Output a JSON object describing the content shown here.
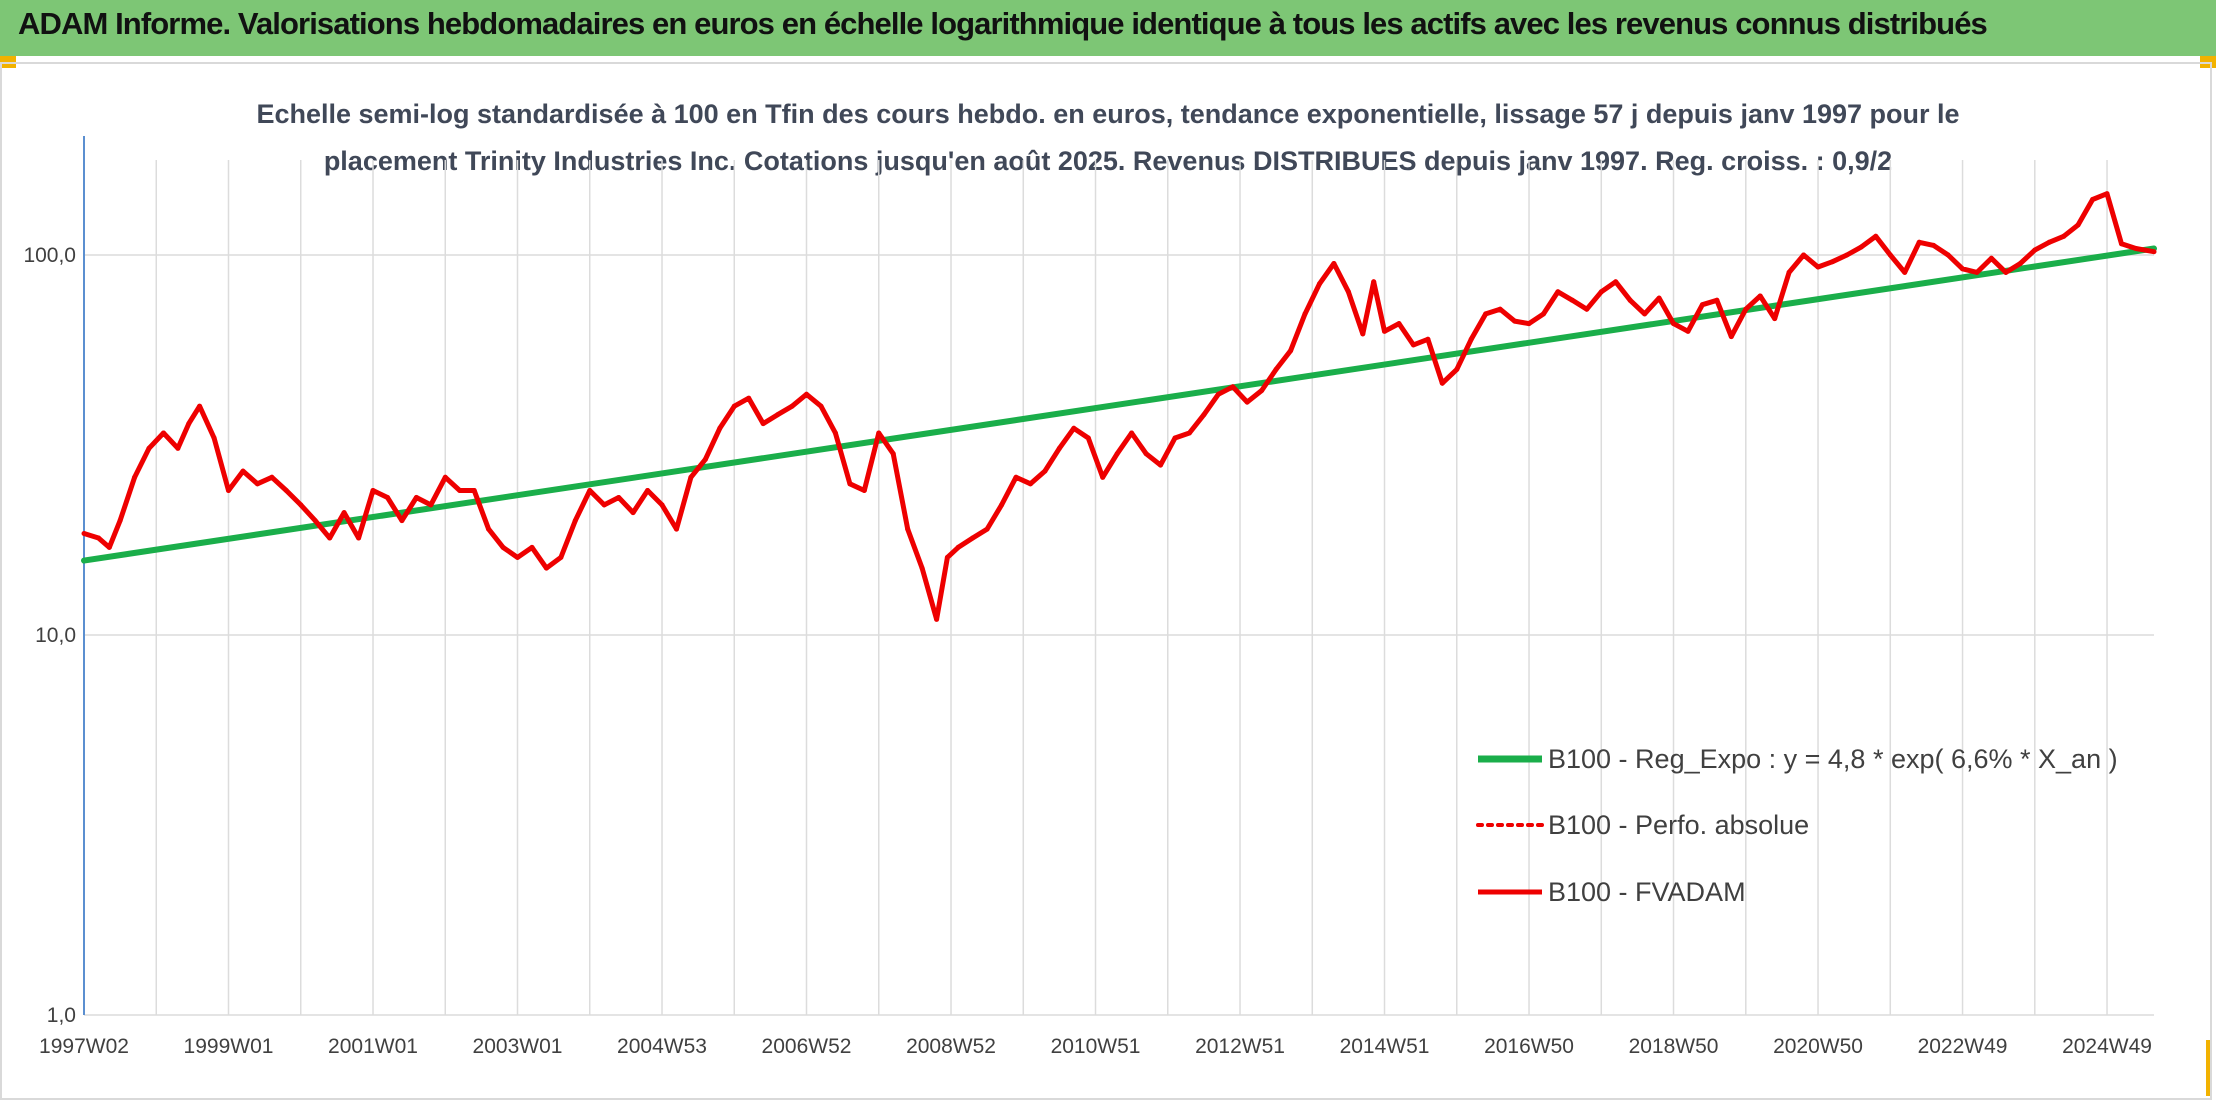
{
  "page": {
    "title": "ADAM Informe. Valorisations hebdomadaires en euros en échelle logarithmique identique à tous les actifs avec les revenus connus distribués"
  },
  "colors": {
    "banner": "#7dc675",
    "trend": "#1aae4a",
    "series": "#ee0000",
    "grid": "#dcdcdc",
    "axis": "#5b8fd0"
  },
  "chart_data": {
    "type": "line",
    "subtitle_lines": [
      "Echelle semi-log standardisée à 100 en Tfin des cours hebdo. en euros, tendance exponentielle, lissage 57 j depuis janv 1997 pour le",
      "placement Trinity Industries Inc. Cotations jusqu'en août 2025. Revenus DISTRIBUES depuis janv 1997. Reg. croiss. : 0,9/2"
    ],
    "y_scale": "log",
    "ylim": [
      1,
      200
    ],
    "y_ticks": [
      {
        "value": 100,
        "label": "100,0"
      },
      {
        "value": 10,
        "label": "10,0"
      },
      {
        "value": 1,
        "label": "1,0"
      }
    ],
    "xlim": [
      1997.0,
      2025.65
    ],
    "x_ticks": [
      {
        "label": "1997W02",
        "year": 1997.0
      },
      {
        "label": "1999W01",
        "year": 1999.0
      },
      {
        "label": "2001W01",
        "year": 2001.0
      },
      {
        "label": "2003W01",
        "year": 2003.0
      },
      {
        "label": "2004W53",
        "year": 2005.0
      },
      {
        "label": "2006W52",
        "year": 2007.0
      },
      {
        "label": "2008W52",
        "year": 2009.0
      },
      {
        "label": "2010W51",
        "year": 2011.0
      },
      {
        "label": "2012W51",
        "year": 2013.0
      },
      {
        "label": "2014W51",
        "year": 2015.0
      },
      {
        "label": "2016W50",
        "year": 2017.0
      },
      {
        "label": "2018W50",
        "year": 2019.0
      },
      {
        "label": "2020W50",
        "year": 2021.0
      },
      {
        "label": "2022W49",
        "year": 2023.0
      },
      {
        "label": "2024W49",
        "year": 2025.0
      }
    ],
    "grid": true,
    "legend_position": "bottom-right",
    "series": [
      {
        "name": "B100 - Reg_Expo : y = 4,8 * exp( 6,6% *  X_an )",
        "style": "solid-thick",
        "color": "#1aae4a",
        "x": [
          1997.0,
          2025.65
        ],
        "y": [
          15.7,
          104.0
        ]
      },
      {
        "name": "B100 - Perfo. absolue",
        "style": "dotted",
        "color": "#ee0000",
        "x": [],
        "y": []
      },
      {
        "name": "B100 - FVADAM",
        "style": "solid",
        "color": "#ee0000",
        "x": [
          1997.0,
          1997.2,
          1997.35,
          1997.5,
          1997.7,
          1997.9,
          1998.1,
          1998.3,
          1998.45,
          1998.6,
          1998.8,
          1999.0,
          1999.2,
          1999.4,
          1999.6,
          1999.8,
          2000.0,
          2000.2,
          2000.4,
          2000.6,
          2000.8,
          2001.0,
          2001.2,
          2001.4,
          2001.6,
          2001.8,
          2002.0,
          2002.2,
          2002.4,
          2002.6,
          2002.8,
          2003.0,
          2003.2,
          2003.4,
          2003.6,
          2003.8,
          2004.0,
          2004.2,
          2004.4,
          2004.6,
          2004.8,
          2005.0,
          2005.2,
          2005.4,
          2005.6,
          2005.8,
          2006.0,
          2006.2,
          2006.4,
          2006.6,
          2006.8,
          2007.0,
          2007.2,
          2007.4,
          2007.6,
          2007.8,
          2008.0,
          2008.2,
          2008.4,
          2008.6,
          2008.8,
          2008.95,
          2009.1,
          2009.3,
          2009.5,
          2009.7,
          2009.9,
          2010.1,
          2010.3,
          2010.5,
          2010.7,
          2010.9,
          2011.1,
          2011.3,
          2011.5,
          2011.7,
          2011.9,
          2012.1,
          2012.3,
          2012.5,
          2012.7,
          2012.9,
          2013.1,
          2013.3,
          2013.5,
          2013.7,
          2013.9,
          2014.1,
          2014.3,
          2014.5,
          2014.7,
          2014.85,
          2015.0,
          2015.2,
          2015.4,
          2015.6,
          2015.8,
          2016.0,
          2016.2,
          2016.4,
          2016.6,
          2016.8,
          2017.0,
          2017.2,
          2017.4,
          2017.6,
          2017.8,
          2018.0,
          2018.2,
          2018.4,
          2018.6,
          2018.8,
          2019.0,
          2019.2,
          2019.4,
          2019.6,
          2019.8,
          2020.0,
          2020.2,
          2020.4,
          2020.6,
          2020.8,
          2021.0,
          2021.2,
          2021.4,
          2021.6,
          2021.8,
          2022.0,
          2022.2,
          2022.4,
          2022.6,
          2022.8,
          2023.0,
          2023.2,
          2023.4,
          2023.6,
          2023.8,
          2024.0,
          2024.2,
          2024.4,
          2024.6,
          2024.8,
          2025.0,
          2025.2,
          2025.4,
          2025.65
        ],
        "y": [
          18.5,
          18.0,
          17.0,
          20.0,
          26.0,
          31.0,
          34.0,
          31.0,
          36.0,
          40.0,
          33.0,
          24.0,
          27.0,
          25.0,
          26.0,
          24.0,
          22.0,
          20.0,
          18.0,
          21.0,
          18.0,
          24.0,
          23.0,
          20.0,
          23.0,
          22.0,
          26.0,
          24.0,
          24.0,
          19.0,
          17.0,
          16.0,
          17.0,
          15.0,
          16.0,
          20.0,
          24.0,
          22.0,
          23.0,
          21.0,
          24.0,
          22.0,
          19.0,
          26.0,
          29.0,
          35.0,
          40.0,
          42.0,
          36.0,
          38.0,
          40.0,
          43.0,
          40.0,
          34.0,
          25.0,
          24.0,
          34.0,
          30.0,
          19.0,
          15.0,
          11.0,
          16.0,
          17.0,
          18.0,
          19.0,
          22.0,
          26.0,
          25.0,
          27.0,
          31.0,
          35.0,
          33.0,
          26.0,
          30.0,
          34.0,
          30.0,
          28.0,
          33.0,
          34.0,
          38.0,
          43.0,
          45.0,
          41.0,
          44.0,
          50.0,
          56.0,
          70.0,
          84.0,
          95.0,
          80.0,
          62.0,
          85.0,
          63.0,
          66.0,
          58.0,
          60.0,
          46.0,
          50.0,
          60.0,
          70.0,
          72.0,
          67.0,
          66.0,
          70.0,
          80.0,
          76.0,
          72.0,
          80.0,
          85.0,
          76.0,
          70.0,
          77.0,
          66.0,
          63.0,
          74.0,
          76.0,
          61.0,
          72.0,
          78.0,
          68.0,
          90.0,
          100.0,
          93.0,
          96.0,
          100.0,
          105.0,
          112.0,
          100.0,
          90.0,
          108.0,
          106.0,
          100.0,
          92.0,
          90.0,
          98.0,
          90.0,
          95.0,
          103.0,
          108.0,
          112.0,
          120.0,
          140.0,
          145.0,
          107.0,
          104.0,
          102.0
        ]
      }
    ]
  }
}
